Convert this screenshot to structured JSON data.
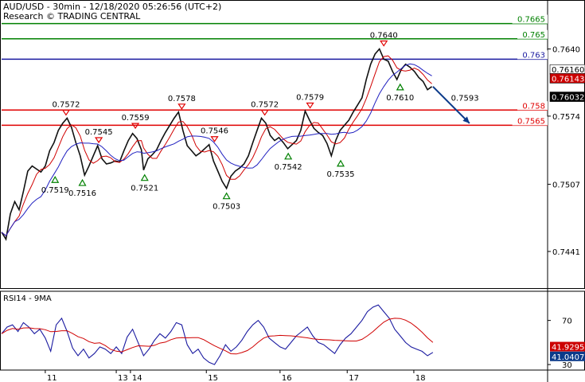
{
  "header": {
    "title": "AUD/USD - 30min - 12/18/2020 05:26:56 (UTC+2)",
    "subtitle": "Research © TRADING CENTRAL"
  },
  "chart_data": [
    {
      "type": "line",
      "name": "price-panel",
      "ylim": [
        0.7405,
        0.7685
      ],
      "x_ticks": [
        {
          "label": "11",
          "pos": 0.08
        },
        {
          "label": "13",
          "pos": 0.21
        },
        {
          "label": "14",
          "pos": 0.236
        },
        {
          "label": "15",
          "pos": 0.375
        },
        {
          "label": "16",
          "pos": 0.51
        },
        {
          "label": "17",
          "pos": 0.633
        },
        {
          "label": "18",
          "pos": 0.755
        }
      ],
      "y_ticks": [
        0.7441,
        0.7507,
        0.7574,
        0.764
      ],
      "price_series": [
        [
          0.0,
          0.746
        ],
        [
          0.008,
          0.7453
        ],
        [
          0.016,
          0.7478
        ],
        [
          0.024,
          0.749
        ],
        [
          0.032,
          0.7482
        ],
        [
          0.04,
          0.75
        ],
        [
          0.048,
          0.752
        ],
        [
          0.056,
          0.7525
        ],
        [
          0.064,
          0.7522
        ],
        [
          0.072,
          0.7519
        ],
        [
          0.08,
          0.7525
        ],
        [
          0.088,
          0.754
        ],
        [
          0.096,
          0.7548
        ],
        [
          0.104,
          0.756
        ],
        [
          0.112,
          0.7567
        ],
        [
          0.12,
          0.7572
        ],
        [
          0.128,
          0.7563
        ],
        [
          0.136,
          0.7548
        ],
        [
          0.144,
          0.7535
        ],
        [
          0.152,
          0.7516
        ],
        [
          0.16,
          0.7525
        ],
        [
          0.168,
          0.7535
        ],
        [
          0.176,
          0.7545
        ],
        [
          0.184,
          0.7532
        ],
        [
          0.192,
          0.7527
        ],
        [
          0.2,
          0.7528
        ],
        [
          0.208,
          0.753
        ],
        [
          0.216,
          0.7529
        ],
        [
          0.224,
          0.754
        ],
        [
          0.232,
          0.755
        ],
        [
          0.24,
          0.7557
        ],
        [
          0.248,
          0.7552
        ],
        [
          0.256,
          0.7541
        ],
        [
          0.26,
          0.7521
        ],
        [
          0.268,
          0.7532
        ],
        [
          0.276,
          0.7536
        ],
        [
          0.284,
          0.7541
        ],
        [
          0.292,
          0.755
        ],
        [
          0.3,
          0.7558
        ],
        [
          0.308,
          0.7565
        ],
        [
          0.316,
          0.7572
        ],
        [
          0.324,
          0.7578
        ],
        [
          0.332,
          0.756
        ],
        [
          0.34,
          0.7545
        ],
        [
          0.348,
          0.754
        ],
        [
          0.356,
          0.7535
        ],
        [
          0.364,
          0.7538
        ],
        [
          0.372,
          0.7542
        ],
        [
          0.38,
          0.7546
        ],
        [
          0.388,
          0.753
        ],
        [
          0.396,
          0.752
        ],
        [
          0.404,
          0.751
        ],
        [
          0.412,
          0.7503
        ],
        [
          0.42,
          0.7515
        ],
        [
          0.428,
          0.752
        ],
        [
          0.436,
          0.7523
        ],
        [
          0.444,
          0.7527
        ],
        [
          0.452,
          0.7535
        ],
        [
          0.46,
          0.7548
        ],
        [
          0.468,
          0.756
        ],
        [
          0.476,
          0.7572
        ],
        [
          0.484,
          0.7567
        ],
        [
          0.492,
          0.7555
        ],
        [
          0.5,
          0.755
        ],
        [
          0.508,
          0.7553
        ],
        [
          0.516,
          0.7548
        ],
        [
          0.524,
          0.7542
        ],
        [
          0.532,
          0.7546
        ],
        [
          0.54,
          0.755
        ],
        [
          0.548,
          0.756
        ],
        [
          0.556,
          0.7579
        ],
        [
          0.564,
          0.757
        ],
        [
          0.572,
          0.7562
        ],
        [
          0.58,
          0.7558
        ],
        [
          0.588,
          0.7555
        ],
        [
          0.596,
          0.7547
        ],
        [
          0.604,
          0.7535
        ],
        [
          0.612,
          0.755
        ],
        [
          0.62,
          0.756
        ],
        [
          0.628,
          0.7565
        ],
        [
          0.636,
          0.757
        ],
        [
          0.644,
          0.7578
        ],
        [
          0.652,
          0.7585
        ],
        [
          0.66,
          0.7592
        ],
        [
          0.668,
          0.761
        ],
        [
          0.676,
          0.7625
        ],
        [
          0.684,
          0.7635
        ],
        [
          0.692,
          0.764
        ],
        [
          0.7,
          0.763
        ],
        [
          0.708,
          0.7628
        ],
        [
          0.716,
          0.7618
        ],
        [
          0.724,
          0.761
        ],
        [
          0.732,
          0.762
        ],
        [
          0.74,
          0.7625
        ],
        [
          0.748,
          0.7622
        ],
        [
          0.756,
          0.7618
        ],
        [
          0.764,
          0.7612
        ],
        [
          0.772,
          0.7608
        ],
        [
          0.78,
          0.76
        ],
        [
          0.788,
          0.7603
        ]
      ],
      "lines": [
        {
          "name": "0.7665",
          "value": 0.7665,
          "color": "#008000",
          "kind": "resistance"
        },
        {
          "name": "0.765",
          "value": 0.765,
          "color": "#008000",
          "kind": "resistance"
        },
        {
          "name": "0.763",
          "value": 0.763,
          "color": "#1a1aa0",
          "kind": "pivot"
        },
        {
          "name": "0.758",
          "value": 0.758,
          "color": "#e00000",
          "kind": "support"
        },
        {
          "name": "0.7565",
          "value": 0.7565,
          "color": "#e00000",
          "kind": "support"
        }
      ],
      "right_badges": [
        {
          "label": "0.76160",
          "value": 0.7616,
          "bg": "#ffffff",
          "fg": "#000000"
        },
        {
          "label": "0.76143",
          "value": 0.76143,
          "bg": "#cc0000",
          "fg": "#ffffff"
        },
        {
          "label": "0.76032",
          "value": 0.76032,
          "bg": "#000000",
          "fg": "#ffffff"
        }
      ],
      "annotations": [
        {
          "label": "0.7572",
          "pos": 0.118,
          "value": 0.7572,
          "marker": "down"
        },
        {
          "label": "0.7545",
          "pos": 0.178,
          "value": 0.7545,
          "marker": "down"
        },
        {
          "label": "0.7559",
          "pos": 0.245,
          "value": 0.7559,
          "marker": "down"
        },
        {
          "label": "0.7578",
          "pos": 0.33,
          "value": 0.7578,
          "marker": "down"
        },
        {
          "label": "0.7546",
          "pos": 0.39,
          "value": 0.7546,
          "marker": "down"
        },
        {
          "label": "0.7572",
          "pos": 0.482,
          "value": 0.7572,
          "marker": "down"
        },
        {
          "label": "0.7579",
          "pos": 0.565,
          "value": 0.7579,
          "marker": "down"
        },
        {
          "label": "0.7640",
          "pos": 0.7,
          "value": 0.764,
          "marker": "down"
        },
        {
          "label": "0.7519",
          "pos": 0.098,
          "value": 0.7519,
          "marker": "up"
        },
        {
          "label": "0.7516",
          "pos": 0.148,
          "value": 0.7516,
          "marker": "up"
        },
        {
          "label": "0.7521",
          "pos": 0.262,
          "value": 0.7521,
          "marker": "up"
        },
        {
          "label": "0.7503",
          "pos": 0.412,
          "value": 0.7503,
          "marker": "up"
        },
        {
          "label": "0.7542",
          "pos": 0.525,
          "value": 0.7542,
          "marker": "up"
        },
        {
          "label": "0.7535",
          "pos": 0.621,
          "value": 0.7535,
          "marker": "up"
        },
        {
          "label": "0.7610",
          "pos": 0.73,
          "value": 0.761,
          "marker": "up"
        }
      ],
      "projection": {
        "from": [
          0.79,
          0.7603
        ],
        "to": [
          0.857,
          0.7567
        ],
        "color": "#0b3a8a"
      },
      "projection_label": "0.7593"
    },
    {
      "type": "line",
      "name": "rsi-panel",
      "title": "RSI14 - 9MA",
      "ylim": [
        25,
        95
      ],
      "y_ticks": [
        30,
        70
      ],
      "rsi_series": [
        [
          0.0,
          58
        ],
        [
          0.01,
          64
        ],
        [
          0.02,
          66
        ],
        [
          0.03,
          60
        ],
        [
          0.04,
          68
        ],
        [
          0.05,
          64
        ],
        [
          0.06,
          58
        ],
        [
          0.07,
          62
        ],
        [
          0.08,
          54
        ],
        [
          0.09,
          42
        ],
        [
          0.1,
          66
        ],
        [
          0.11,
          72
        ],
        [
          0.12,
          60
        ],
        [
          0.13,
          45
        ],
        [
          0.14,
          38
        ],
        [
          0.15,
          44
        ],
        [
          0.16,
          36
        ],
        [
          0.17,
          40
        ],
        [
          0.18,
          46
        ],
        [
          0.19,
          44
        ],
        [
          0.2,
          40
        ],
        [
          0.21,
          46
        ],
        [
          0.22,
          40
        ],
        [
          0.23,
          55
        ],
        [
          0.24,
          62
        ],
        [
          0.25,
          50
        ],
        [
          0.26,
          38
        ],
        [
          0.27,
          44
        ],
        [
          0.28,
          52
        ],
        [
          0.29,
          58
        ],
        [
          0.3,
          54
        ],
        [
          0.31,
          60
        ],
        [
          0.32,
          68
        ],
        [
          0.33,
          66
        ],
        [
          0.34,
          48
        ],
        [
          0.35,
          40
        ],
        [
          0.36,
          44
        ],
        [
          0.37,
          36
        ],
        [
          0.38,
          32
        ],
        [
          0.39,
          30
        ],
        [
          0.4,
          38
        ],
        [
          0.41,
          48
        ],
        [
          0.42,
          42
        ],
        [
          0.43,
          46
        ],
        [
          0.44,
          52
        ],
        [
          0.45,
          60
        ],
        [
          0.46,
          66
        ],
        [
          0.47,
          70
        ],
        [
          0.48,
          64
        ],
        [
          0.49,
          54
        ],
        [
          0.5,
          50
        ],
        [
          0.51,
          46
        ],
        [
          0.52,
          44
        ],
        [
          0.53,
          50
        ],
        [
          0.54,
          56
        ],
        [
          0.55,
          60
        ],
        [
          0.56,
          64
        ],
        [
          0.57,
          56
        ],
        [
          0.58,
          50
        ],
        [
          0.59,
          48
        ],
        [
          0.6,
          44
        ],
        [
          0.61,
          40
        ],
        [
          0.62,
          48
        ],
        [
          0.63,
          54
        ],
        [
          0.64,
          58
        ],
        [
          0.65,
          64
        ],
        [
          0.66,
          70
        ],
        [
          0.67,
          78
        ],
        [
          0.68,
          82
        ],
        [
          0.69,
          84
        ],
        [
          0.7,
          78
        ],
        [
          0.71,
          72
        ],
        [
          0.72,
          62
        ],
        [
          0.73,
          56
        ],
        [
          0.74,
          50
        ],
        [
          0.75,
          46
        ],
        [
          0.76,
          44
        ],
        [
          0.77,
          42
        ],
        [
          0.78,
          38
        ],
        [
          0.79,
          41
        ]
      ],
      "right_badges": [
        {
          "label": "41.9295",
          "value": 41.9295,
          "bg": "#cc0000",
          "fg": "#ffffff"
        },
        {
          "label": "41.0407",
          "value": 41.0407,
          "bg": "#0b3a8a",
          "fg": "#ffffff"
        }
      ]
    }
  ]
}
